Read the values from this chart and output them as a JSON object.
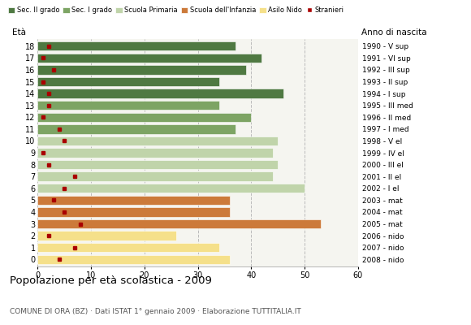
{
  "ages": [
    18,
    17,
    16,
    15,
    14,
    13,
    12,
    11,
    10,
    9,
    8,
    7,
    6,
    5,
    4,
    3,
    2,
    1,
    0
  ],
  "years": [
    "1990 - V sup",
    "1991 - VI sup",
    "1992 - III sup",
    "1993 - II sup",
    "1994 - I sup",
    "1995 - III med",
    "1996 - II med",
    "1997 - I med",
    "1998 - V el",
    "1999 - IV el",
    "2000 - III el",
    "2001 - II el",
    "2002 - I el",
    "2003 - mat",
    "2004 - mat",
    "2005 - mat",
    "2006 - nido",
    "2007 - nido",
    "2008 - nido"
  ],
  "bar_values": [
    37,
    42,
    39,
    34,
    46,
    34,
    40,
    37,
    45,
    44,
    45,
    44,
    50,
    36,
    36,
    53,
    26,
    34,
    36
  ],
  "stranger_values": [
    2,
    1,
    3,
    1,
    2,
    2,
    1,
    4,
    5,
    1,
    2,
    7,
    5,
    3,
    5,
    8,
    2,
    7,
    4
  ],
  "colors_by_age": {
    "18": "#4f7942",
    "17": "#4f7942",
    "16": "#4f7942",
    "15": "#4f7942",
    "14": "#4f7942",
    "13": "#7da464",
    "12": "#7da464",
    "11": "#7da464",
    "10": "#c0d4aa",
    "9": "#c0d4aa",
    "8": "#c0d4aa",
    "7": "#c0d4aa",
    "6": "#c0d4aa",
    "5": "#cc7a3a",
    "4": "#cc7a3a",
    "3": "#cc7a3a",
    "2": "#f5e08a",
    "1": "#f5e08a",
    "0": "#f5e08a"
  },
  "stranger_color": "#aa0000",
  "grid_color": "#bbbbbb",
  "title": "Popolazione per età scolastica - 2009",
  "subtitle": "COMUNE DI ORA (BZ) · Dati ISTAT 1° gennaio 2009 · Elaborazione TUTTITALIA.IT",
  "xlim": [
    0,
    60
  ],
  "xticks": [
    0,
    10,
    20,
    30,
    40,
    50,
    60
  ],
  "legend_items": [
    {
      "label": "Sec. II grado",
      "color": "#4f7942"
    },
    {
      "label": "Sec. I grado",
      "color": "#7da464"
    },
    {
      "label": "Scuola Primaria",
      "color": "#c0d4aa"
    },
    {
      "label": "Scuola dell'Infanzia",
      "color": "#cc7a3a"
    },
    {
      "label": "Asilo Nido",
      "color": "#f5e08a"
    },
    {
      "label": "Stranieri",
      "color": "#aa0000"
    }
  ],
  "bar_height": 0.78,
  "bg_color": "#f5f5f0"
}
